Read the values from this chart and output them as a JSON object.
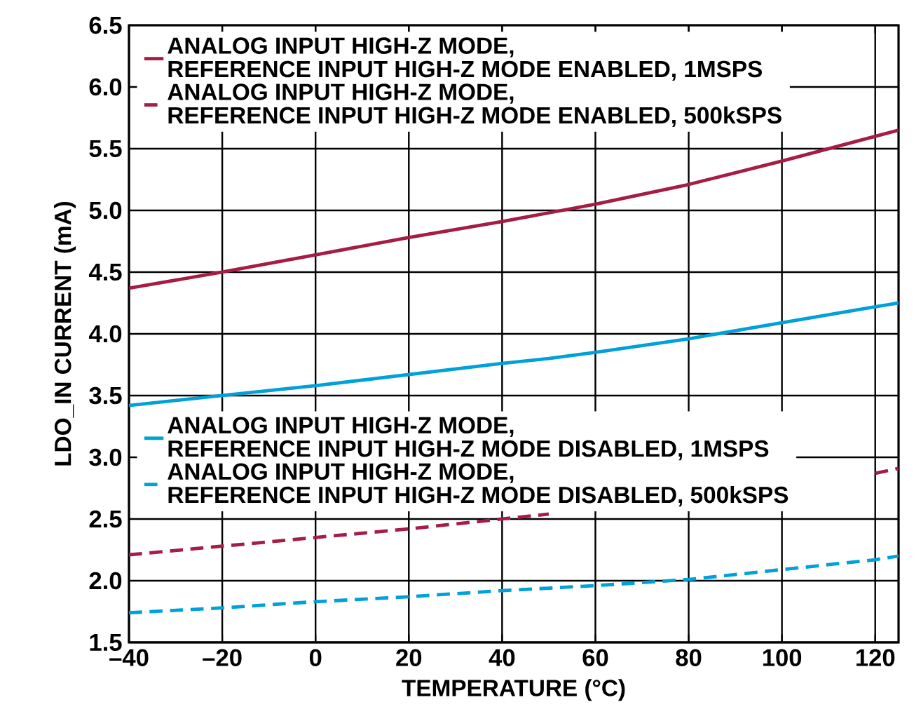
{
  "chart_data": {
    "type": "line",
    "xlabel": "TEMPERATURE (°C)",
    "ylabel": "LDO_IN CURRENT (mA)",
    "x": [
      -40,
      -20,
      0,
      20,
      40,
      50,
      60,
      80,
      100,
      120,
      125
    ],
    "series": [
      {
        "name": "ANALOG INPUT HIGH-Z MODE,\nREFERENCE INPUT HIGH-Z MODE ENABLED, 1MSPS",
        "color": "#a51c45",
        "line_style": "solid",
        "values": [
          4.37,
          4.5,
          4.64,
          4.78,
          4.91,
          4.98,
          5.05,
          5.21,
          5.4,
          5.6,
          5.65
        ]
      },
      {
        "name": "ANALOG INPUT HIGH-Z MODE,\nREFERENCE INPUT HIGH-Z MODE ENABLED, 500kSPS",
        "color": "#a51c45",
        "line_style": "dashed",
        "values": [
          2.21,
          2.28,
          2.35,
          2.42,
          2.5,
          2.54,
          null,
          null,
          null,
          2.87,
          2.91
        ]
      },
      {
        "name": "ANALOG INPUT HIGH-Z MODE,\nREFERENCE INPUT HIGH-Z MODE DISABLED, 1MSPS",
        "color": "#00a0d8",
        "line_style": "solid",
        "values": [
          3.42,
          3.5,
          3.58,
          3.67,
          3.76,
          3.8,
          3.85,
          3.96,
          4.09,
          4.22,
          4.25
        ]
      },
      {
        "name": "ANALOG INPUT HIGH-Z MODE,\nREFERENCE INPUT HIGH-Z MODE DISABLED, 500kSPS",
        "color": "#00a0d8",
        "line_style": "dashed",
        "values": [
          1.74,
          1.78,
          1.83,
          1.87,
          1.92,
          1.94,
          1.96,
          2.01,
          2.09,
          2.17,
          2.2
        ]
      }
    ],
    "xlim": [
      -40,
      125
    ],
    "xticks": [
      {
        "value": -40,
        "label": "–40"
      },
      {
        "value": -20,
        "label": "–20"
      },
      0,
      20,
      40,
      60,
      80,
      100,
      120
    ],
    "ylim": [
      1.5,
      6.5
    ],
    "yticks": [
      {
        "value": 1.5,
        "label": "1.5"
      },
      {
        "value": 2,
        "label": "2.0"
      },
      {
        "value": 2.5,
        "label": "2.5"
      },
      {
        "value": 3,
        "label": "3.0"
      },
      {
        "value": 3.5,
        "label": "3.5"
      },
      {
        "value": 4,
        "label": "4.0"
      },
      {
        "value": 4.5,
        "label": "4.5"
      },
      {
        "value": 5,
        "label": "5.0"
      },
      {
        "value": 5.5,
        "label": "5.5"
      },
      {
        "value": 6,
        "label": "6.0"
      },
      {
        "value": 6.5,
        "label": "6.5"
      }
    ],
    "grid": true,
    "legend": "top left",
    "marker": "none"
  }
}
